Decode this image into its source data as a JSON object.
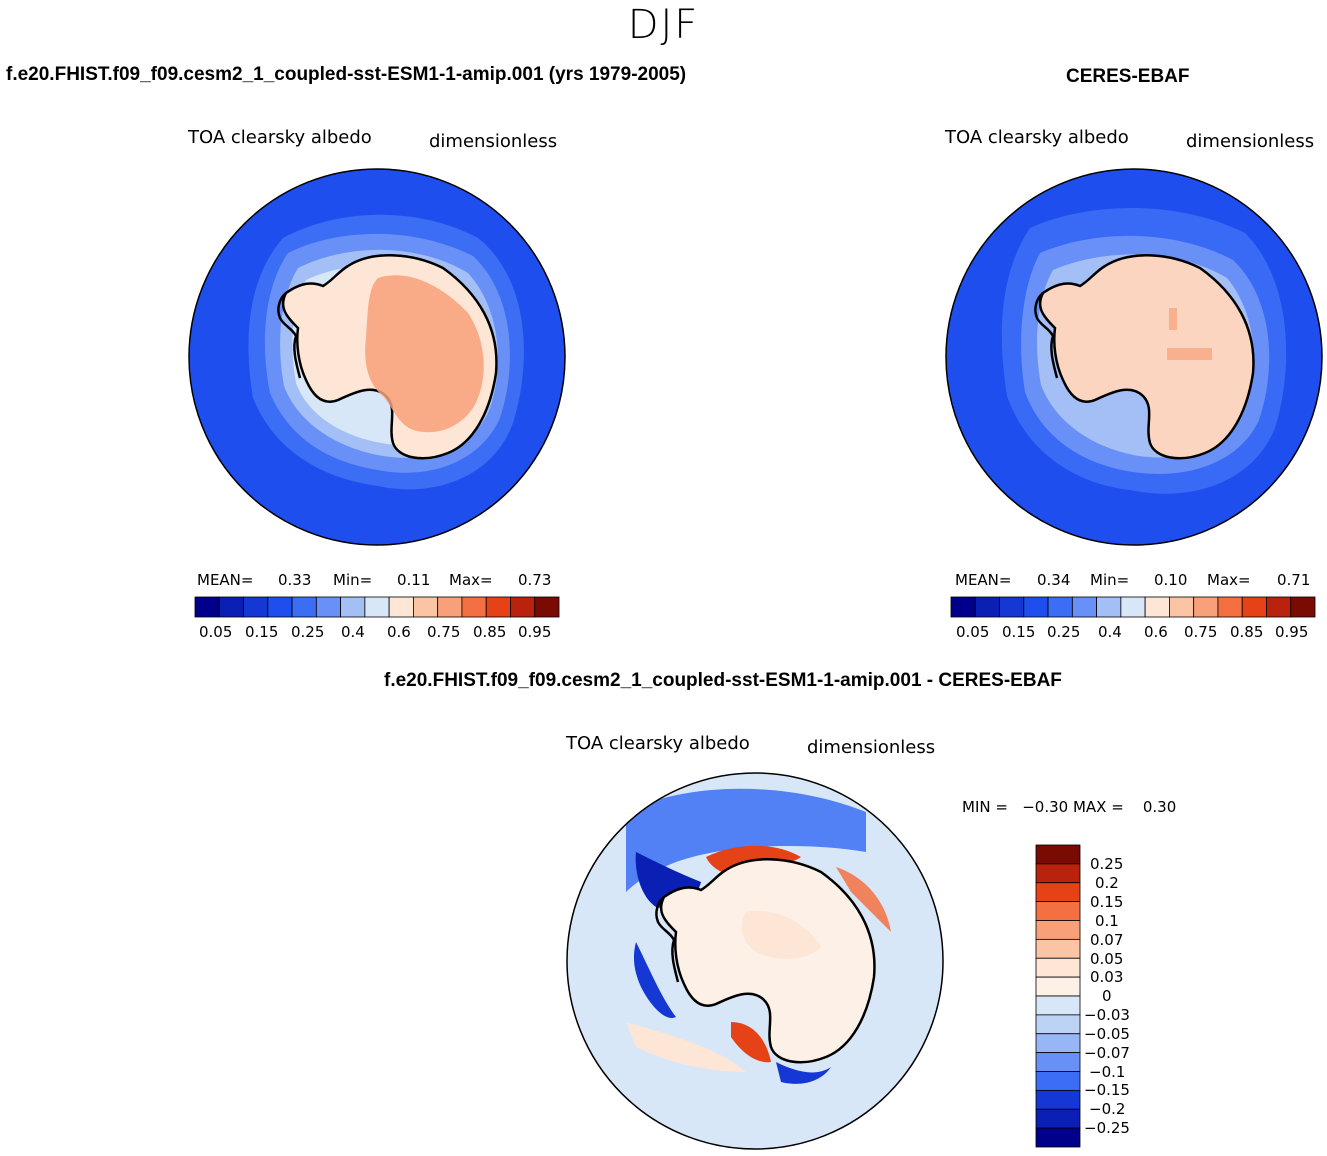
{
  "season": "DJF",
  "panels": [
    {
      "title": "f.e20.FHIST.f09_f09.cesm2_1_coupled-sst-ESM1-1-amip.001 (yrs 1979-2005)",
      "left_label": "TOA clearsky albedo",
      "right_label": "dimensionless",
      "mean_label": "MEAN=",
      "mean": "0.33",
      "min_label": "Min=",
      "min": "0.11",
      "max_label": "Max=",
      "max": "0.73",
      "colorbar_ticks": [
        "0.05",
        "0.15",
        "0.25",
        "0.4",
        "0.6",
        "0.75",
        "0.85",
        "0.95"
      ]
    },
    {
      "title": "CERES-EBAF",
      "left_label": "TOA clearsky albedo",
      "right_label": "dimensionless",
      "mean_label": "MEAN=",
      "mean": "0.34",
      "min_label": "Min=",
      "min": "0.10",
      "max_label": "Max=",
      "max": "0.71",
      "colorbar_ticks": [
        "0.05",
        "0.15",
        "0.25",
        "0.4",
        "0.6",
        "0.75",
        "0.85",
        "0.95"
      ]
    }
  ],
  "diff_panel": {
    "title": "f.e20.FHIST.f09_f09.cesm2_1_coupled-sst-ESM1-1-amip.001 - CERES-EBAF",
    "left_label": "TOA clearsky albedo",
    "right_label": "dimensionless",
    "minmax": "MIN =   −0.30 MAX =    0.30",
    "colorbar_ticks": [
      "0.25",
      "0.2",
      "0.15",
      "0.1",
      "0.07",
      "0.05",
      "0.03",
      "0",
      "−0.03",
      "−0.05",
      "−0.07",
      "−0.1",
      "−0.15",
      "−0.2",
      "−0.25"
    ]
  },
  "chart_data": [
    {
      "type": "heatmap",
      "projection": "south-polar-stereographic",
      "title": "f.e20.FHIST.f09_f09.cesm2_1_coupled-sst-ESM1-1-amip.001 (yrs 1979-2005)",
      "variable": "TOA clearsky albedo",
      "units": "dimensionless",
      "mean": 0.33,
      "min": 0.11,
      "max": 0.73,
      "levels": [
        0.05,
        0.1,
        0.15,
        0.2,
        0.25,
        0.3,
        0.4,
        0.5,
        0.6,
        0.7,
        0.75,
        0.8,
        0.85,
        0.9,
        0.95
      ],
      "colors": [
        "#00008b",
        "#0a1fb4",
        "#1537d4",
        "#1e4fee",
        "#3b6df5",
        "#6990f6",
        "#a4bff5",
        "#d8e7f7",
        "#fde6d6",
        "#fbc5a5",
        "#f8a07a",
        "#f47042",
        "#e54317",
        "#b9230d",
        "#7a0b03"
      ]
    },
    {
      "type": "heatmap",
      "projection": "south-polar-stereographic",
      "title": "CERES-EBAF",
      "variable": "TOA clearsky albedo",
      "units": "dimensionless",
      "mean": 0.34,
      "min": 0.1,
      "max": 0.71,
      "levels": [
        0.05,
        0.1,
        0.15,
        0.2,
        0.25,
        0.3,
        0.4,
        0.5,
        0.6,
        0.7,
        0.75,
        0.8,
        0.85,
        0.9,
        0.95
      ],
      "colors": [
        "#00008b",
        "#0a1fb4",
        "#1537d4",
        "#1e4fee",
        "#3b6df5",
        "#6990f6",
        "#a4bff5",
        "#d8e7f7",
        "#fde6d6",
        "#fbc5a5",
        "#f8a07a",
        "#f47042",
        "#e54317",
        "#b9230d",
        "#7a0b03"
      ]
    },
    {
      "type": "heatmap",
      "projection": "south-polar-stereographic",
      "title": "f.e20.FHIST.f09_f09.cesm2_1_coupled-sst-ESM1-1-amip.001 - CERES-EBAF",
      "variable": "TOA clearsky albedo",
      "units": "dimensionless",
      "min": -0.3,
      "max": 0.3,
      "levels": [
        0.25,
        0.2,
        0.15,
        0.1,
        0.07,
        0.05,
        0.03,
        0,
        -0.03,
        -0.05,
        -0.07,
        -0.1,
        -0.15,
        -0.2,
        -0.25
      ],
      "colors": [
        "#7a0b03",
        "#b9230d",
        "#e54317",
        "#f47042",
        "#f8a07a",
        "#fbc5a5",
        "#fde6d6",
        "#fdf0e6",
        "#d8e7f7",
        "#bcd3f6",
        "#98b6f6",
        "#6990f6",
        "#3b6df5",
        "#1537d4",
        "#0a1fb4",
        "#00008b"
      ]
    }
  ]
}
